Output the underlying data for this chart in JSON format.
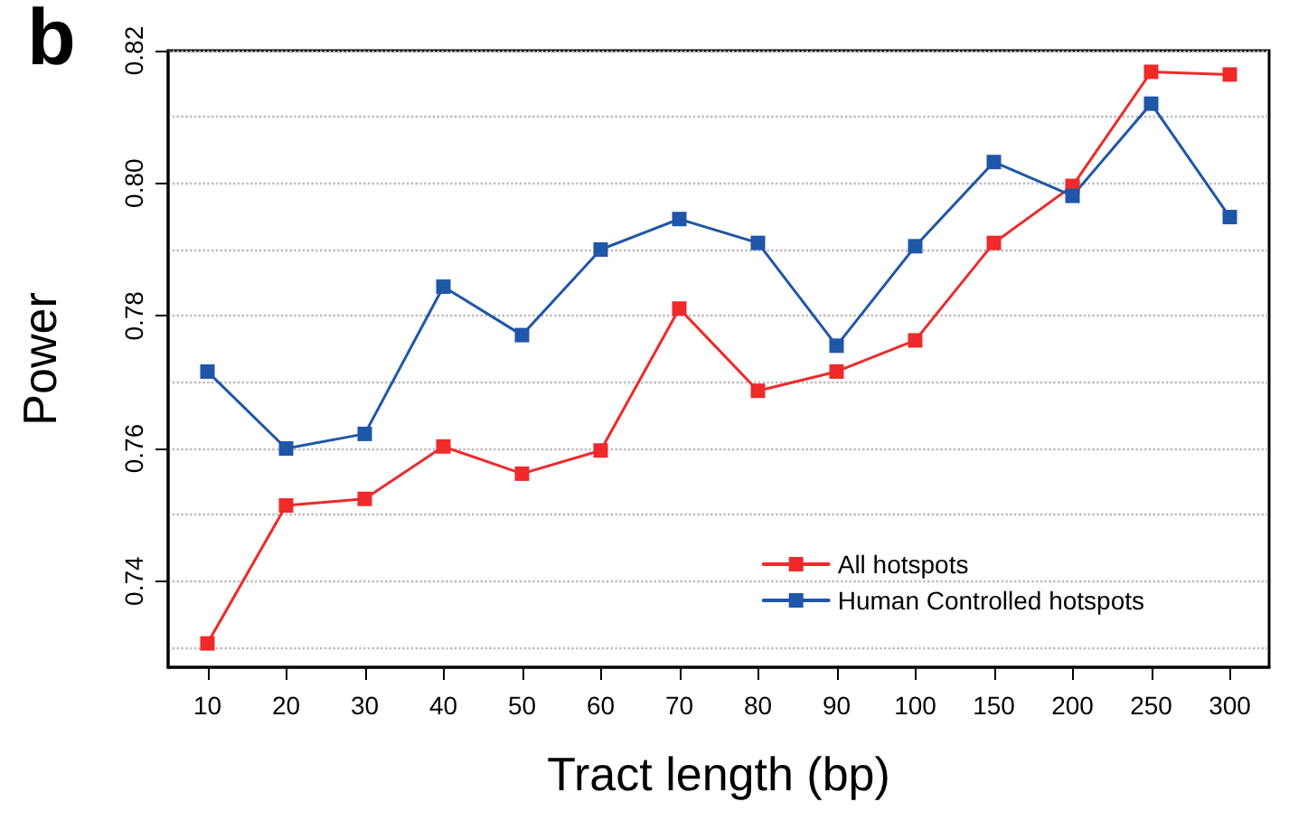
{
  "chart_data": {
    "type": "line",
    "title": "b",
    "xlabel": "Tract length (bp)",
    "ylabel": "Power",
    "categories": [
      "10",
      "20",
      "30",
      "40",
      "50",
      "60",
      "70",
      "80",
      "90",
      "100",
      "150",
      "200",
      "250",
      "300"
    ],
    "series": [
      {
        "name": "All hotspots",
        "color": "#ee2a2a",
        "values": [
          0.7306,
          0.7514,
          0.7524,
          0.7603,
          0.7562,
          0.7597,
          0.7811,
          0.7687,
          0.7716,
          0.7763,
          0.791,
          0.7996,
          0.8168,
          0.8164
        ]
      },
      {
        "name": "Human Controlled hotspots",
        "color": "#1f56a8",
        "values": [
          0.7716,
          0.76,
          0.7622,
          0.7844,
          0.7771,
          0.79,
          0.7946,
          0.791,
          0.7755,
          0.7905,
          0.8032,
          0.7981,
          0.812,
          0.7949
        ]
      }
    ],
    "ylim": [
      0.727,
      0.82
    ],
    "yticks": [
      {
        "value": 0.73,
        "label": null
      },
      0.74,
      {
        "value": 0.75,
        "label": null
      },
      0.76,
      {
        "value": 0.77,
        "label": null
      },
      0.78,
      {
        "value": 0.79,
        "label": null
      },
      {
        "value": 0.8,
        "label": "0.80"
      },
      {
        "value": 0.81,
        "label": null
      },
      0.82
    ],
    "grid": "y",
    "legend": "bottom right",
    "marker": "square",
    "line_style": "solid"
  }
}
